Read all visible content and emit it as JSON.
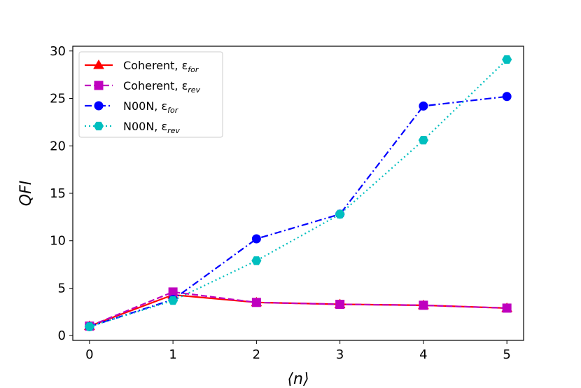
{
  "chart_data": {
    "type": "line",
    "xlabel": "⟨n⟩",
    "ylabel": "QFI",
    "xlim": [
      -0.2,
      5.2
    ],
    "ylim": [
      -0.5,
      30.5
    ],
    "xticks": [
      0,
      1,
      2,
      3,
      4,
      5
    ],
    "yticks": [
      0,
      5,
      10,
      15,
      20,
      25,
      30
    ],
    "grid": false,
    "legend_position": "top-left",
    "x": [
      0,
      1,
      2,
      3,
      4,
      5
    ],
    "series": [
      {
        "name": "Coherent, ε",
        "subscript": "for",
        "values": [
          1.0,
          4.3,
          3.5,
          3.3,
          3.2,
          2.9
        ],
        "color": "#ff0000",
        "marker": "triangle",
        "linestyle": "solid"
      },
      {
        "name": "Coherent, ε",
        "subscript": "rev",
        "values": [
          1.0,
          4.6,
          3.5,
          3.3,
          3.2,
          2.9
        ],
        "color": "#bf00bf",
        "marker": "square",
        "linestyle": "dashed"
      },
      {
        "name": "N00N, ε",
        "subscript": "for",
        "values": [
          0.95,
          3.8,
          10.2,
          12.8,
          24.2,
          25.2
        ],
        "color": "#0000ff",
        "marker": "circle",
        "linestyle": "dashdot"
      },
      {
        "name": "N00N, ε",
        "subscript": "rev",
        "values": [
          0.95,
          3.7,
          7.9,
          12.8,
          20.6,
          29.1
        ],
        "color": "#00bfbf",
        "marker": "hexagon",
        "linestyle": "dotted"
      }
    ]
  }
}
